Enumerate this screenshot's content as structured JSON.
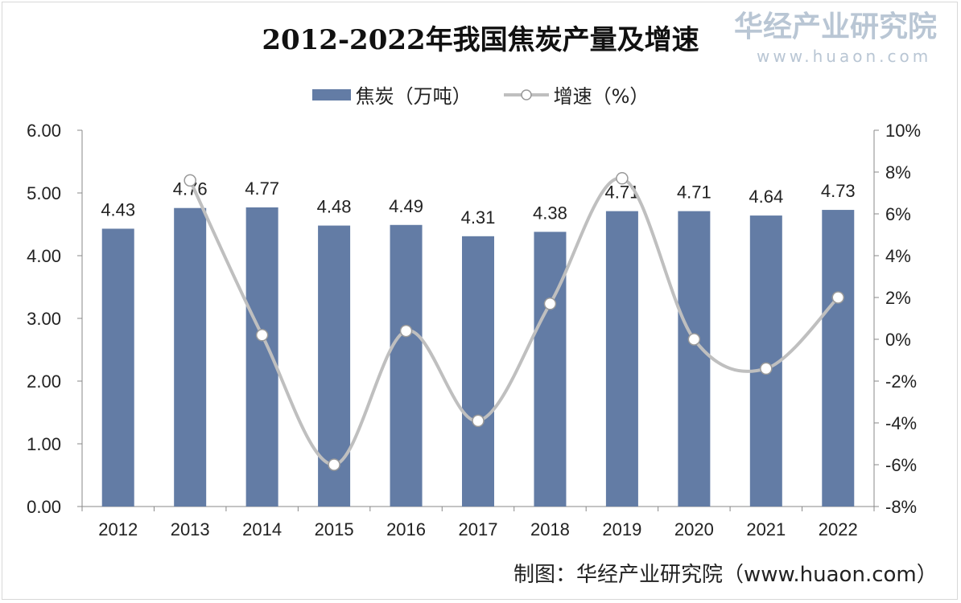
{
  "chart_data": {
    "type": "bar+line",
    "title": "2012-2022年我国焦炭产量及增速",
    "categories": [
      "2012",
      "2013",
      "2014",
      "2015",
      "2016",
      "2017",
      "2018",
      "2019",
      "2020",
      "2021",
      "2022"
    ],
    "series": [
      {
        "name": "焦炭（万吨）",
        "type": "bar",
        "axis": "left",
        "color": "#637ca5",
        "values": [
          4.43,
          4.76,
          4.77,
          4.48,
          4.49,
          4.31,
          4.38,
          4.71,
          4.71,
          4.64,
          4.73
        ],
        "labels": [
          "4.43",
          "4.76",
          "4.77",
          "4.48",
          "4.49",
          "4.31",
          "4.38",
          "4.71",
          "4.71",
          "4.64",
          "4.73"
        ]
      },
      {
        "name": "增速（%）",
        "type": "line",
        "axis": "right",
        "color": "#bfbfbf",
        "values": [
          null,
          7.6,
          0.2,
          -6.0,
          0.4,
          -3.9,
          1.7,
          7.7,
          0.0,
          -1.4,
          2.0
        ]
      }
    ],
    "left_axis": {
      "range": [
        0,
        6
      ],
      "ticks": [
        "0.00",
        "1.00",
        "2.00",
        "3.00",
        "4.00",
        "5.00",
        "6.00"
      ]
    },
    "right_axis": {
      "range": [
        -8,
        10
      ],
      "ticks": [
        "-8%",
        "-6%",
        "-4%",
        "-2%",
        "0%",
        "2%",
        "4%",
        "6%",
        "8%",
        "10%"
      ]
    },
    "grid": false,
    "legend_position": "top"
  },
  "credit": "制图：华经产业研究院（www.huaon.com）",
  "watermark": {
    "name": "华经产业研究院",
    "url": "www.huaon.com"
  }
}
